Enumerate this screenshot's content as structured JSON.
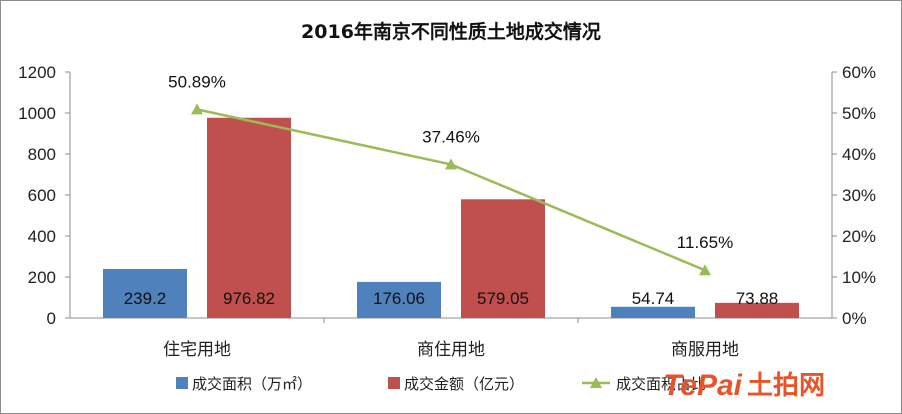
{
  "chart_data": {
    "type": "bar",
    "title": "2016年南京不同性质土地成交情况",
    "categories": [
      "住宅用地",
      "商住用地",
      "商服用地"
    ],
    "series": [
      {
        "name": "成交面积（万㎡）",
        "kind": "bar",
        "axis": "left",
        "color": "#4f81bd",
        "values": [
          239.2,
          176.06,
          54.74
        ],
        "labels": [
          "239.2",
          "176.06",
          "54.74"
        ]
      },
      {
        "name": "成交金额（亿元）",
        "kind": "bar",
        "axis": "left",
        "color": "#c0504d",
        "values": [
          976.82,
          579.05,
          73.88
        ],
        "labels": [
          "976.82",
          "579.05",
          "73.88"
        ]
      },
      {
        "name": "成交面积占比",
        "kind": "line",
        "axis": "right",
        "color": "#9bbb59",
        "values": [
          50.89,
          37.46,
          11.65
        ],
        "labels": [
          "50.89%",
          "37.46%",
          "11.65%"
        ]
      }
    ],
    "y_left": {
      "min": 0,
      "max": 1200,
      "step": 200,
      "ticks": [
        "0",
        "200",
        "400",
        "600",
        "800",
        "1000",
        "1200"
      ]
    },
    "y_right": {
      "min": 0,
      "max": 60,
      "step": 10,
      "ticks": [
        "0%",
        "10%",
        "20%",
        "30%",
        "40%",
        "50%",
        "60%"
      ]
    },
    "grid": false,
    "legend_position": "bottom"
  },
  "watermark": {
    "brand": "TePai",
    "text": "土拍网"
  }
}
